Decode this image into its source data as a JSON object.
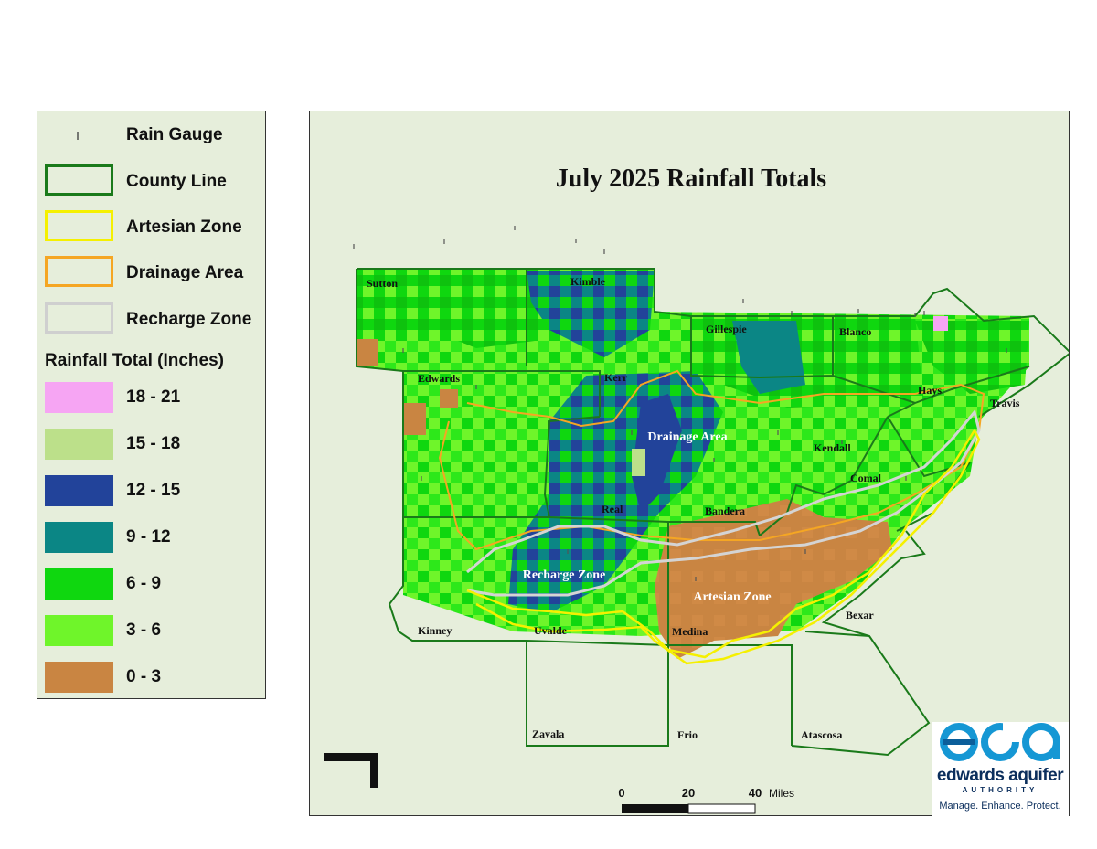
{
  "title": "July 2025 Rainfall Totals",
  "legend": {
    "symbols": [
      {
        "label": "Rain Gauge",
        "kind": "gauge"
      },
      {
        "label": "County Line",
        "kind": "outline",
        "color": "#1a7a1a"
      },
      {
        "label": "Artesian Zone",
        "kind": "outline",
        "color": "#f5f000"
      },
      {
        "label": "Drainage Area",
        "kind": "outline",
        "color": "#f5a623"
      },
      {
        "label": "Recharge Zone",
        "kind": "outline",
        "color": "#c8c8c8"
      }
    ],
    "rain_heading": "Rainfall Total (Inches)",
    "classes": [
      {
        "label": "18 - 21",
        "color": "#f6a5f3"
      },
      {
        "label": "15 - 18",
        "color": "#bce08a"
      },
      {
        "label": "12 - 15",
        "color": "#22439a"
      },
      {
        "label": "9 - 12",
        "color": "#0b8685"
      },
      {
        "label": "6 - 9",
        "color": "#0fd70f"
      },
      {
        "label": "3 - 6",
        "color": "#6ff52a"
      },
      {
        "label": "0 - 3",
        "color": "#c98542"
      }
    ]
  },
  "counties": [
    "Sutton",
    "Kimble",
    "Gillespie",
    "Blanco",
    "Edwards",
    "Kerr",
    "Hays",
    "Travis",
    "Kendall",
    "Comal",
    "Real",
    "Bandera",
    "Kinney",
    "Uvalde",
    "Medina",
    "Bexar",
    "Zavala",
    "Frio",
    "Atascosa"
  ],
  "zones": {
    "drainage": "Drainage Area",
    "recharge": "Recharge Zone",
    "artesian": "Artesian Zone"
  },
  "scale": {
    "ticks": [
      "0",
      "20",
      "40"
    ],
    "unit": "Miles"
  },
  "logo": {
    "name": "edwards aquifer",
    "authority": "AUTHORITY",
    "tagline": "Manage. Enhance. Protect."
  }
}
